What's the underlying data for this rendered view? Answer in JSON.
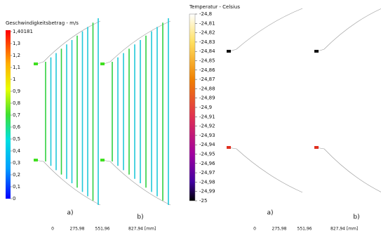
{
  "velocity": {
    "title": "Geschwindigkeitsbetrag - m/s",
    "labels": [
      "1,40181",
      "1,3",
      "1,2",
      "1,1",
      "1",
      "0,9",
      "0,8",
      "0,7",
      "0,6",
      "0,5",
      "0,4",
      "0,3",
      "0,2",
      "0,1",
      "0"
    ],
    "panels": [
      "a)",
      "b)"
    ],
    "scale": [
      "0",
      "275,98",
      "551,96",
      "827,94 [mm]"
    ]
  },
  "temperature": {
    "title": "Temperatur - Celsius",
    "labels": [
      "-24,8",
      "-24,81",
      "-24,82",
      "-24,83",
      "-24,84",
      "-24,85",
      "-24,86",
      "-24,87",
      "-24,88",
      "-24,89",
      "-24,9",
      "-24,91",
      "-24,92",
      "-24,93",
      "-24,94",
      "-24,95",
      "-24,96",
      "-24,97",
      "-24,98",
      "-24,99",
      "-25"
    ],
    "panels": [
      "a)",
      "b)"
    ],
    "scale": [
      "0",
      "275,98",
      "551,96",
      "827,94 [mm]"
    ]
  }
}
